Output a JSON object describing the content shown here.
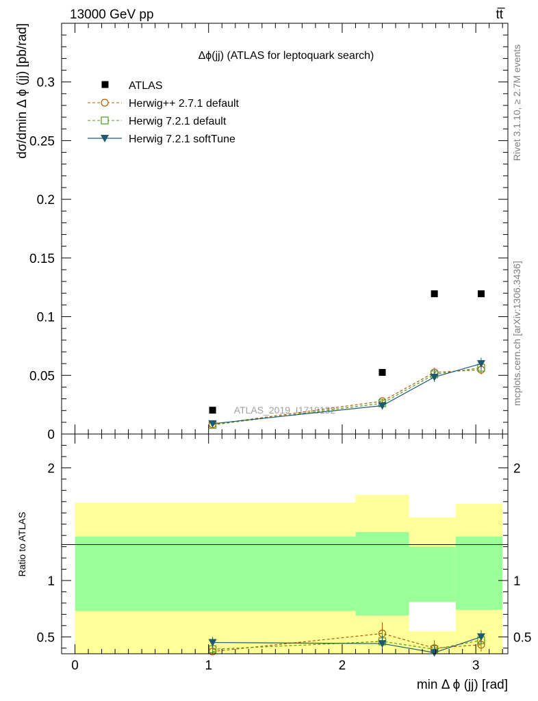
{
  "header": {
    "energy_label": "13000 GeV pp",
    "process_label": "tt̅"
  },
  "side_labels": {
    "rivet": "Rivet 3.1.10, ≥ 2.7M events",
    "mcplots": "mcplots.cern.ch [arXiv:1306.3436]"
  },
  "chart_data": [
    {
      "type": "scatter",
      "title": "Δϕ(jj) (ATLAS for leptoquark search)",
      "watermark": "ATLAS_2019_I1718132",
      "xlabel": "min Δ ϕ (jj) [rad]",
      "ylabel": "dσ/dmin Δ ϕ (jj) [pb/rad]",
      "xlim": [
        -0.1,
        3.24
      ],
      "ylim": [
        0,
        0.35
      ],
      "yticks": [
        0,
        0.05,
        0.1,
        0.15,
        0.2,
        0.25,
        0.3
      ],
      "ytick_labels": [
        "0",
        "0.05",
        "0.1",
        "0.15",
        "0.2",
        "0.25",
        "0.3"
      ],
      "x": [
        1.03,
        2.3,
        2.69,
        3.04
      ],
      "series": [
        {
          "name": "ATLAS",
          "marker": "square-filled",
          "color": "#000000",
          "line": "none",
          "values": [
            0.0203,
            0.0525,
            0.1195,
            0.1195
          ]
        },
        {
          "name": "Herwig++ 2.7.1 default",
          "marker": "circle-open",
          "color": "#b35a00",
          "line": "dashed",
          "values": [
            0.0082,
            0.028,
            0.0525,
            0.0548
          ],
          "errors": [
            0.001,
            0.002,
            0.004,
            0.004
          ]
        },
        {
          "name": "Herwig 7.2.1 default",
          "marker": "square-open",
          "color": "#4d9a17",
          "line": "dashed",
          "values": [
            0.0078,
            0.0262,
            0.0508,
            0.0565
          ],
          "errors": [
            0.001,
            0.002,
            0.004,
            0.004
          ]
        },
        {
          "name": "Herwig 7.2.1 softTune",
          "marker": "triangle-down-filled",
          "color": "#1e5a6e",
          "line": "solid",
          "values": [
            0.0088,
            0.0242,
            0.0485,
            0.06
          ],
          "errors": [
            0.001,
            0.002,
            0.004,
            0.005
          ]
        }
      ]
    },
    {
      "type": "line",
      "ylabel": "Ratio to ATLAS",
      "xlim": [
        -0.1,
        3.24
      ],
      "ylim": [
        0.35,
        2.3
      ],
      "yticks": [
        0.5,
        1,
        2
      ],
      "ytick_labels": [
        "0.5",
        "1",
        "2"
      ],
      "xticks": [
        0,
        1,
        2,
        3
      ],
      "xtick_labels": [
        "0",
        "1",
        "2",
        "3"
      ],
      "bins": [
        {
          "lo": 0.0,
          "hi": 2.1,
          "yellow": [
            0.35,
            1.69
          ],
          "green": [
            0.73,
            1.39
          ]
        },
        {
          "lo": 2.1,
          "hi": 2.5,
          "yellow": [
            0.35,
            1.76
          ],
          "green": [
            0.69,
            1.43
          ]
        },
        {
          "lo": 2.5,
          "hi": 2.85,
          "yellow": [
            0.35,
            1.56
          ],
          "green": [
            0.81,
            1.3
          ],
          "gap": [
            0.55,
            0.81
          ]
        },
        {
          "lo": 2.85,
          "hi": 3.2,
          "yellow": [
            0.35,
            1.68
          ],
          "green": [
            0.74,
            1.39
          ]
        }
      ],
      "x": [
        1.03,
        2.3,
        2.69,
        3.04
      ],
      "series": [
        {
          "name": "Herwig++ 2.7.1 default",
          "values": [
            0.37,
            0.53,
            0.4,
            0.43
          ],
          "errors": [
            0.04,
            0.1,
            0.07,
            0.06
          ]
        },
        {
          "name": "Herwig 7.2.1 default",
          "values": [
            0.39,
            0.46,
            0.39,
            0.47
          ],
          "errors": [
            0.04,
            0.08,
            0.07,
            0.06
          ]
        },
        {
          "name": "Herwig 7.2.1 softTune",
          "values": [
            0.45,
            0.44,
            0.36,
            0.5
          ],
          "errors": [
            0.05,
            0.07,
            0.06,
            0.06
          ]
        }
      ]
    }
  ]
}
